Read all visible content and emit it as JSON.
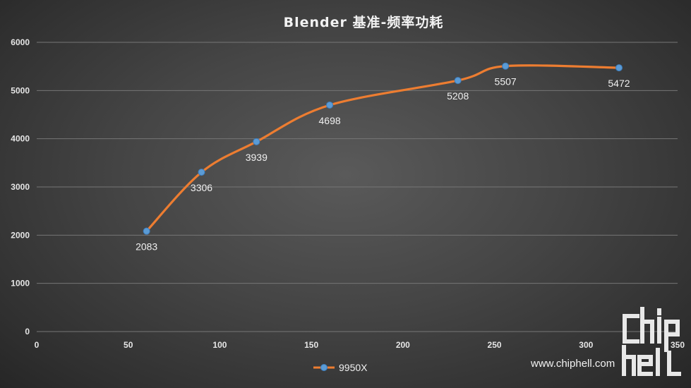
{
  "chart_data": {
    "type": "line",
    "title": "Blender 基准-频率功耗",
    "xlim": [
      0,
      350
    ],
    "ylim": [
      0,
      6000
    ],
    "x_ticks": [
      0,
      50,
      100,
      150,
      200,
      250,
      300,
      350
    ],
    "y_ticks": [
      0,
      1000,
      2000,
      3000,
      4000,
      5000,
      6000
    ],
    "grid": "horizontal",
    "legend_position": "bottom-center",
    "series": [
      {
        "name": "9950X",
        "color": "#ed7d31",
        "marker_color": "#5b9bd5",
        "points": [
          {
            "x": 60,
            "y": 2083,
            "label": "2083"
          },
          {
            "x": 90,
            "y": 3306,
            "label": "3306"
          },
          {
            "x": 120,
            "y": 3939,
            "label": "3939"
          },
          {
            "x": 160,
            "y": 4698,
            "label": "4698"
          },
          {
            "x": 230,
            "y": 5208,
            "label": "5208"
          },
          {
            "x": 256,
            "y": 5507,
            "label": "5507"
          },
          {
            "x": 318,
            "y": 5472,
            "label": "5472"
          }
        ]
      }
    ]
  },
  "watermark": {
    "logo_text": "chiphell",
    "url": "www.chiphell.com"
  }
}
